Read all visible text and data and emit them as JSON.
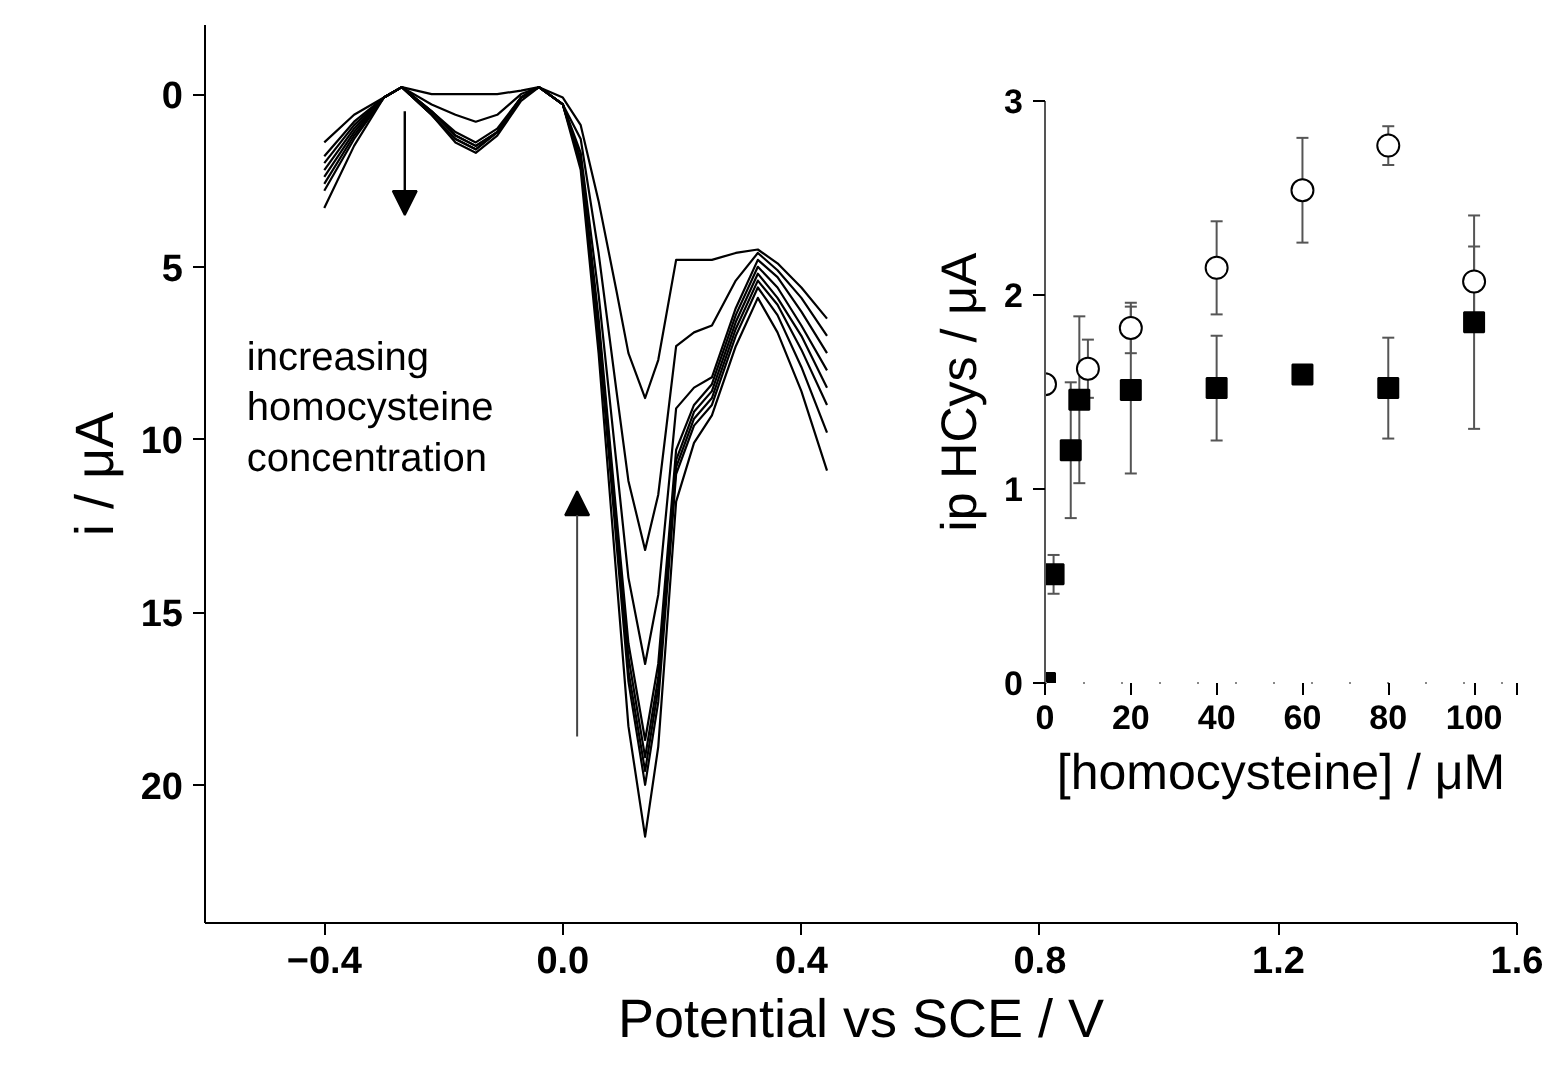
{
  "chart_data": [
    {
      "type": "line",
      "xlabel": "Potential vs SCE / V",
      "ylabel": "i / μA",
      "annotations": [
        "increasing\nhomocysteine\nconcentration"
      ],
      "x": [
        -0.4,
        -0.35,
        -0.3,
        -0.27,
        -0.22,
        -0.18,
        -0.146,
        -0.11,
        -0.07,
        -0.04,
        0.0,
        0.03,
        0.06,
        0.09,
        0.11,
        0.138,
        0.16,
        0.19,
        0.22,
        0.25,
        0.29,
        0.327,
        0.36,
        0.4,
        0.443
      ],
      "series": [
        {
          "color": "#000000",
          "values": [
            1.4,
            0.6,
            0.1,
            -0.2,
            0.0,
            0.0,
            0.0,
            0.0,
            -0.1,
            -0.2,
            0.1,
            0.9,
            3.1,
            5.7,
            7.5,
            8.8,
            7.7,
            4.8,
            4.8,
            4.8,
            4.6,
            4.5,
            4.9,
            5.6,
            6.5
          ]
        },
        {
          "color": "#000000",
          "values": [
            1.8,
            0.8,
            0.1,
            -0.2,
            0.3,
            0.6,
            0.8,
            0.6,
            0.0,
            -0.2,
            0.3,
            1.3,
            4.6,
            8.6,
            11.2,
            13.2,
            11.6,
            7.3,
            6.9,
            6.7,
            5.4,
            4.6,
            5.1,
            5.9,
            7.0
          ]
        },
        {
          "color": "#000000",
          "values": [
            2.0,
            0.9,
            0.1,
            -0.2,
            0.5,
            1.1,
            1.4,
            1.0,
            0.1,
            -0.2,
            0.3,
            1.7,
            5.8,
            10.7,
            14.0,
            16.5,
            14.5,
            9.1,
            8.5,
            8.2,
            6.2,
            4.8,
            5.3,
            6.3,
            7.5
          ]
        },
        {
          "color": "#000000",
          "values": [
            2.2,
            1.0,
            0.1,
            -0.2,
            0.5,
            1.2,
            1.5,
            1.1,
            0.1,
            -0.2,
            0.3,
            1.9,
            6.5,
            12.2,
            15.9,
            18.7,
            16.5,
            10.3,
            9.0,
            8.4,
            6.4,
            5.0,
            5.6,
            6.7,
            8.0
          ]
        },
        {
          "color": "#000000",
          "values": [
            2.4,
            1.1,
            0.1,
            -0.2,
            0.5,
            1.2,
            1.5,
            1.1,
            0.1,
            -0.2,
            0.3,
            1.9,
            6.7,
            12.5,
            16.3,
            19.2,
            16.9,
            10.6,
            9.2,
            8.6,
            6.6,
            5.2,
            5.9,
            7.0,
            8.5
          ]
        },
        {
          "color": "#000000",
          "values": [
            2.6,
            1.2,
            0.1,
            -0.2,
            0.6,
            1.3,
            1.6,
            1.1,
            0.1,
            -0.2,
            0.3,
            2.0,
            6.9,
            12.7,
            16.7,
            19.6,
            17.2,
            10.8,
            9.4,
            8.8,
            6.8,
            5.4,
            6.1,
            7.4,
            9.0
          ]
        },
        {
          "color": "#000000",
          "values": [
            2.8,
            1.3,
            0.1,
            -0.2,
            0.6,
            1.3,
            1.6,
            1.1,
            0.1,
            -0.2,
            0.3,
            2.0,
            7.0,
            13.0,
            17.0,
            20.0,
            17.6,
            11.0,
            9.6,
            9.0,
            7.0,
            5.6,
            6.4,
            7.9,
            9.8
          ]
        },
        {
          "color": "#000000",
          "values": [
            3.3,
            1.5,
            0.1,
            -0.2,
            0.6,
            1.4,
            1.7,
            1.2,
            0.2,
            -0.2,
            0.3,
            2.2,
            7.5,
            14.0,
            18.3,
            21.5,
            18.9,
            11.8,
            10.1,
            9.3,
            7.3,
            5.9,
            6.9,
            8.6,
            10.9
          ]
        }
      ],
      "xlim": [
        -0.6,
        1.6
      ],
      "xticks": [
        -0.4,
        {
          "value": 0,
          "label": "0.0"
        },
        0.4,
        0.8,
        1.2,
        1.6
      ],
      "ylim": [
        24,
        -2
      ],
      "yticks": [
        0,
        5,
        10,
        15,
        20
      ],
      "grid": false
    },
    {
      "type": "scatter",
      "xlabel": "[homocysteine] / μM",
      "ylabel": "ip HCys / μA",
      "series": [
        {
          "color": "#000000",
          "marker": "circle",
          "x": [
            0,
            10,
            20,
            40,
            60,
            80,
            100
          ],
          "values": [
            1.54,
            1.62,
            1.83,
            2.14,
            2.54,
            2.77,
            2.07
          ],
          "errors": [
            null,
            0.15,
            0.13,
            0.24,
            0.27,
            0.1,
            0.18
          ]
        },
        {
          "color": "#000000",
          "marker": "square",
          "x": [
            0,
            2,
            6,
            8,
            20,
            40,
            60,
            80,
            100
          ],
          "values": [
            0,
            0.56,
            1.2,
            1.46,
            1.51,
            1.52,
            1.59,
            1.52,
            1.86
          ],
          "errors": [
            null,
            0.1,
            0.35,
            0.43,
            0.43,
            0.27,
            null,
            0.26,
            0.55
          ]
        }
      ],
      "xlim": [
        0,
        110
      ],
      "xticks": [
        0,
        20,
        40,
        60,
        80,
        100,
        {
          "value": 110,
          "label": null
        }
      ],
      "ylim": [
        0,
        3
      ],
      "yticks": [
        0,
        1,
        2,
        3
      ],
      "grid": false
    }
  ]
}
